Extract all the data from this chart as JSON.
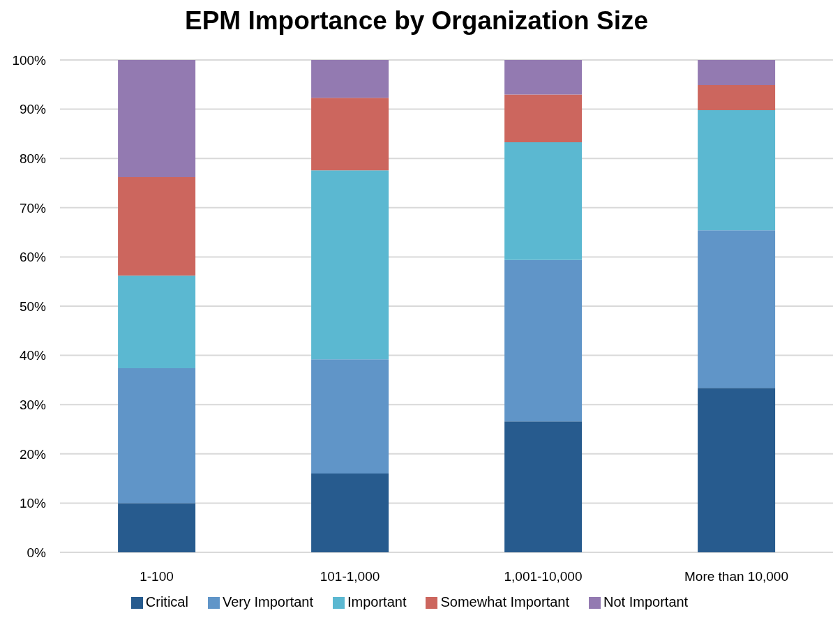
{
  "chart_data": {
    "type": "bar",
    "title": "EPM Importance by Organization Size",
    "categories": [
      "1-100",
      "101-1,000",
      "1,001-10,000",
      "More than 10,000"
    ],
    "stacked": true,
    "series": [
      {
        "name": "Critical",
        "color": "#275b8e",
        "values": [
          10,
          16,
          26.6,
          33.4
        ]
      },
      {
        "name": "Very Important",
        "color": "#6095c8",
        "values": [
          27.4,
          23.2,
          32.8,
          32.0
        ]
      },
      {
        "name": "Important",
        "color": "#5bb8d1",
        "values": [
          18.8,
          38.4,
          23.9,
          24.4
        ]
      },
      {
        "name": "Somewhat Important",
        "color": "#cc665e",
        "values": [
          20,
          14.7,
          9.7,
          5.1
        ]
      },
      {
        "name": "Not Important",
        "color": "#937ab1",
        "values": [
          23.8,
          7.7,
          7.0,
          5.1
        ]
      }
    ],
    "ylim": [
      0,
      100
    ],
    "yticks": [
      {
        "value": 0,
        "label": "0%"
      },
      {
        "value": 10,
        "label": "10%"
      },
      {
        "value": 20,
        "label": "20%"
      },
      {
        "value": 30,
        "label": "30%"
      },
      {
        "value": 40,
        "label": "40%"
      },
      {
        "value": 50,
        "label": "50%"
      },
      {
        "value": 60,
        "label": "60%"
      },
      {
        "value": 70,
        "label": "70%"
      },
      {
        "value": 80,
        "label": "80%"
      },
      {
        "value": 90,
        "label": "90%"
      },
      {
        "value": 100,
        "label": "100%"
      }
    ],
    "grid": "y",
    "legend": "bottom"
  }
}
